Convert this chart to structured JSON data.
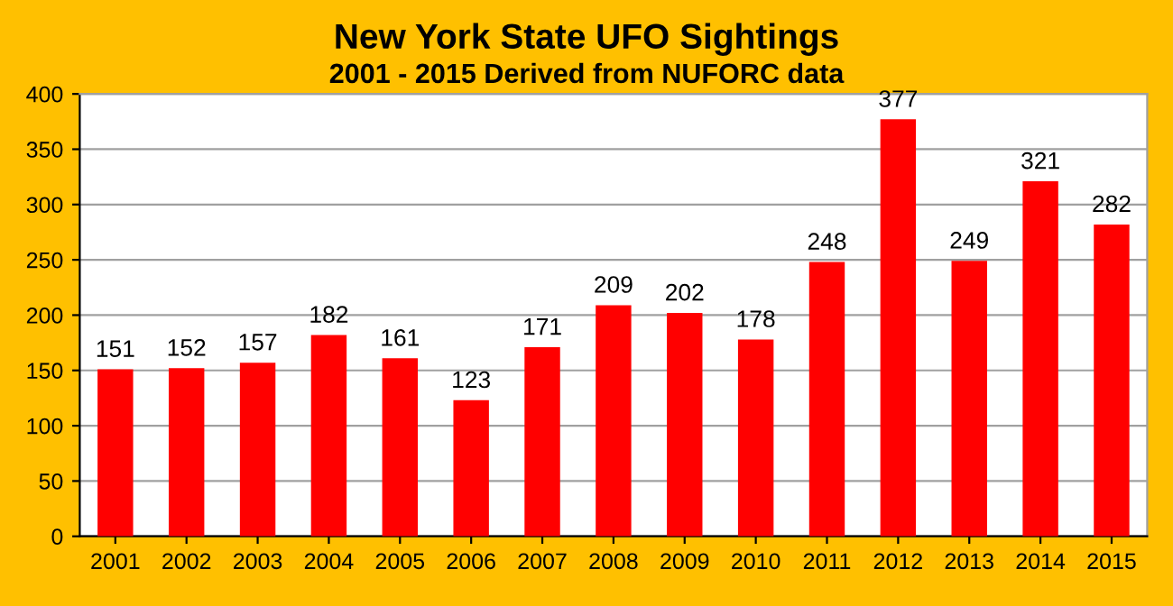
{
  "chart_data": {
    "type": "bar",
    "title": "New York State UFO Sightings",
    "subtitle": "2001 - 2015 Derived from NUFORC data",
    "categories": [
      "2001",
      "2002",
      "2003",
      "2004",
      "2005",
      "2006",
      "2007",
      "2008",
      "2009",
      "2010",
      "2011",
      "2012",
      "2013",
      "2014",
      "2015"
    ],
    "values": [
      151,
      152,
      157,
      182,
      161,
      123,
      171,
      209,
      202,
      178,
      248,
      377,
      249,
      321,
      282
    ],
    "color": "#ff0000",
    "ylim": [
      0,
      400
    ],
    "yticks": [
      0,
      50,
      100,
      150,
      200,
      250,
      300,
      350,
      400
    ],
    "grid": "y",
    "data_labels": true,
    "legend": false
  }
}
